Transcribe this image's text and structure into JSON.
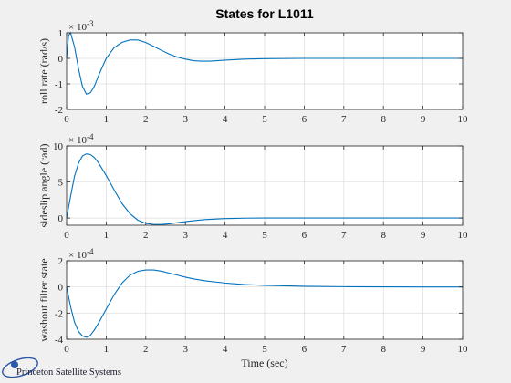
{
  "figure": {
    "title": "States for L1011",
    "xlabel": "Time (sec)",
    "logo_text": "Princeton Satellite Systems",
    "line_color": "#0072bd"
  },
  "chart_data": [
    {
      "type": "line",
      "ylabel": "roll rate (rad/s)",
      "exponent_base": "× 10",
      "exponent_power": "-3",
      "xlim": [
        0,
        10
      ],
      "ylim": [
        -2,
        1
      ],
      "xticks": [
        0,
        1,
        2,
        3,
        4,
        5,
        6,
        7,
        8,
        9,
        10
      ],
      "yticks": [
        -2,
        -1,
        0,
        1
      ],
      "grid": true,
      "series": [
        {
          "x": [
            0,
            0.05,
            0.1,
            0.2,
            0.3,
            0.4,
            0.5,
            0.6,
            0.7,
            0.8,
            1.0,
            1.2,
            1.4,
            1.6,
            1.8,
            2.0,
            2.2,
            2.4,
            2.6,
            2.8,
            3.0,
            3.2,
            3.4,
            3.6,
            3.8,
            4.0,
            4.5,
            5.0,
            6.0,
            7.0,
            8.0,
            9.0,
            10.0
          ],
          "y": [
            0,
            0.9,
            1.0,
            0.45,
            -0.4,
            -1.1,
            -1.4,
            -1.35,
            -1.1,
            -0.7,
            0.0,
            0.42,
            0.63,
            0.72,
            0.72,
            0.62,
            0.47,
            0.31,
            0.16,
            0.05,
            -0.03,
            -0.09,
            -0.11,
            -0.11,
            -0.09,
            -0.07,
            -0.03,
            -0.01,
            0,
            0,
            0,
            0,
            0
          ]
        }
      ]
    },
    {
      "type": "line",
      "ylabel": "sideslip angle (rad)",
      "exponent_base": "× 10",
      "exponent_power": "-4",
      "xlim": [
        0,
        10
      ],
      "ylim": [
        -1,
        10
      ],
      "xticks": [
        0,
        1,
        2,
        3,
        4,
        5,
        6,
        7,
        8,
        9,
        10
      ],
      "yticks": [
        0,
        5,
        10
      ],
      "grid": true,
      "series": [
        {
          "x": [
            0,
            0.1,
            0.2,
            0.3,
            0.4,
            0.5,
            0.6,
            0.7,
            0.8,
            1.0,
            1.2,
            1.4,
            1.6,
            1.8,
            2.0,
            2.2,
            2.4,
            2.6,
            2.8,
            3.0,
            3.2,
            3.5,
            4.0,
            4.5,
            5.0,
            6.0,
            7.0,
            8.0,
            9.0,
            10.0
          ],
          "y": [
            0,
            3.0,
            5.8,
            7.6,
            8.6,
            8.9,
            8.8,
            8.4,
            7.7,
            5.9,
            3.9,
            2.0,
            0.6,
            -0.3,
            -0.75,
            -0.9,
            -0.9,
            -0.8,
            -0.65,
            -0.5,
            -0.38,
            -0.22,
            -0.08,
            -0.02,
            0,
            0,
            0,
            0,
            0,
            0
          ]
        }
      ]
    },
    {
      "type": "line",
      "ylabel": "washout filter state",
      "exponent_base": "× 10",
      "exponent_power": "-4",
      "xlim": [
        0,
        10
      ],
      "ylim": [
        -4,
        2
      ],
      "xticks": [
        0,
        1,
        2,
        3,
        4,
        5,
        6,
        7,
        8,
        9,
        10
      ],
      "yticks": [
        -4,
        -2,
        0,
        2
      ],
      "grid": true,
      "series": [
        {
          "x": [
            0,
            0.1,
            0.2,
            0.3,
            0.4,
            0.5,
            0.6,
            0.7,
            0.8,
            1.0,
            1.2,
            1.4,
            1.6,
            1.8,
            2.0,
            2.2,
            2.4,
            2.6,
            2.8,
            3.0,
            3.2,
            3.5,
            4.0,
            4.5,
            5.0,
            6.0,
            7.0,
            8.0,
            9.0,
            10.0
          ],
          "y": [
            0,
            -1.5,
            -2.7,
            -3.4,
            -3.75,
            -3.85,
            -3.7,
            -3.3,
            -2.8,
            -1.7,
            -0.6,
            0.3,
            0.9,
            1.2,
            1.3,
            1.3,
            1.2,
            1.05,
            0.9,
            0.75,
            0.62,
            0.47,
            0.3,
            0.18,
            0.12,
            0.05,
            0.02,
            0.01,
            0,
            0
          ]
        }
      ]
    }
  ]
}
